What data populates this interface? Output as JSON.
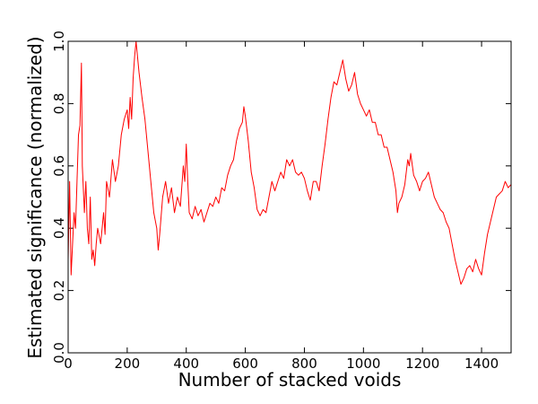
{
  "chart_data": {
    "type": "line",
    "xlabel": "Number of stacked voids",
    "ylabel": "Estimated significance (normalized)",
    "color": "#ff0000",
    "xlim": [
      0,
      1500
    ],
    "xticks": [
      0,
      200,
      400,
      600,
      800,
      1000,
      1200,
      1400
    ],
    "ylim": [
      0,
      1
    ],
    "yticks": [
      {
        "value": 0,
        "label": "0.0"
      },
      0.2,
      0.4,
      0.6,
      0.8,
      {
        "value": 1,
        "label": "1.0"
      }
    ],
    "x": [
      0,
      5,
      10,
      15,
      20,
      25,
      30,
      35,
      40,
      45,
      48,
      55,
      60,
      65,
      70,
      75,
      80,
      85,
      90,
      95,
      100,
      110,
      120,
      125,
      130,
      140,
      150,
      160,
      170,
      180,
      190,
      200,
      205,
      210,
      215,
      220,
      225,
      230,
      235,
      240,
      250,
      260,
      270,
      280,
      290,
      300,
      305,
      310,
      320,
      330,
      340,
      350,
      360,
      370,
      380,
      390,
      395,
      400,
      405,
      410,
      420,
      430,
      440,
      450,
      460,
      470,
      480,
      490,
      500,
      510,
      520,
      530,
      540,
      550,
      560,
      570,
      580,
      590,
      595,
      600,
      610,
      620,
      630,
      640,
      650,
      660,
      670,
      680,
      690,
      700,
      710,
      720,
      730,
      740,
      750,
      760,
      770,
      780,
      790,
      800,
      810,
      820,
      830,
      840,
      850,
      860,
      870,
      880,
      890,
      900,
      910,
      920,
      930,
      940,
      950,
      960,
      970,
      980,
      990,
      1000,
      1010,
      1020,
      1030,
      1040,
      1050,
      1060,
      1070,
      1080,
      1090,
      1100,
      1110,
      1115,
      1120,
      1130,
      1140,
      1150,
      1155,
      1160,
      1170,
      1180,
      1190,
      1200,
      1210,
      1220,
      1230,
      1240,
      1250,
      1260,
      1270,
      1280,
      1290,
      1300,
      1310,
      1320,
      1330,
      1340,
      1350,
      1360,
      1370,
      1380,
      1390,
      1400,
      1410,
      1420,
      1430,
      1440,
      1450,
      1460,
      1470,
      1480,
      1490,
      1500
    ],
    "values": [
      0.3,
      0.55,
      0.25,
      0.35,
      0.45,
      0.4,
      0.55,
      0.7,
      0.73,
      0.93,
      0.6,
      0.45,
      0.55,
      0.4,
      0.35,
      0.5,
      0.3,
      0.33,
      0.28,
      0.35,
      0.4,
      0.35,
      0.45,
      0.38,
      0.55,
      0.5,
      0.62,
      0.55,
      0.6,
      0.7,
      0.75,
      0.78,
      0.72,
      0.82,
      0.75,
      0.88,
      0.95,
      1.0,
      0.95,
      0.9,
      0.82,
      0.75,
      0.65,
      0.55,
      0.45,
      0.4,
      0.33,
      0.38,
      0.5,
      0.55,
      0.48,
      0.53,
      0.45,
      0.5,
      0.47,
      0.6,
      0.55,
      0.67,
      0.55,
      0.45,
      0.43,
      0.47,
      0.44,
      0.46,
      0.42,
      0.45,
      0.48,
      0.47,
      0.5,
      0.48,
      0.53,
      0.52,
      0.57,
      0.6,
      0.62,
      0.68,
      0.72,
      0.74,
      0.79,
      0.76,
      0.68,
      0.58,
      0.53,
      0.46,
      0.44,
      0.46,
      0.45,
      0.5,
      0.55,
      0.52,
      0.55,
      0.58,
      0.56,
      0.62,
      0.6,
      0.62,
      0.58,
      0.57,
      0.58,
      0.56,
      0.52,
      0.49,
      0.55,
      0.55,
      0.52,
      0.6,
      0.67,
      0.75,
      0.82,
      0.87,
      0.86,
      0.9,
      0.94,
      0.88,
      0.84,
      0.86,
      0.9,
      0.83,
      0.8,
      0.78,
      0.76,
      0.78,
      0.74,
      0.74,
      0.7,
      0.7,
      0.66,
      0.66,
      0.62,
      0.58,
      0.52,
      0.45,
      0.48,
      0.5,
      0.54,
      0.62,
      0.6,
      0.64,
      0.57,
      0.55,
      0.52,
      0.55,
      0.56,
      0.58,
      0.54,
      0.5,
      0.48,
      0.46,
      0.45,
      0.42,
      0.4,
      0.35,
      0.3,
      0.26,
      0.22,
      0.24,
      0.27,
      0.28,
      0.26,
      0.3,
      0.27,
      0.25,
      0.32,
      0.38,
      0.42,
      0.46,
      0.5,
      0.51,
      0.52,
      0.55,
      0.53,
      0.54
    ]
  }
}
